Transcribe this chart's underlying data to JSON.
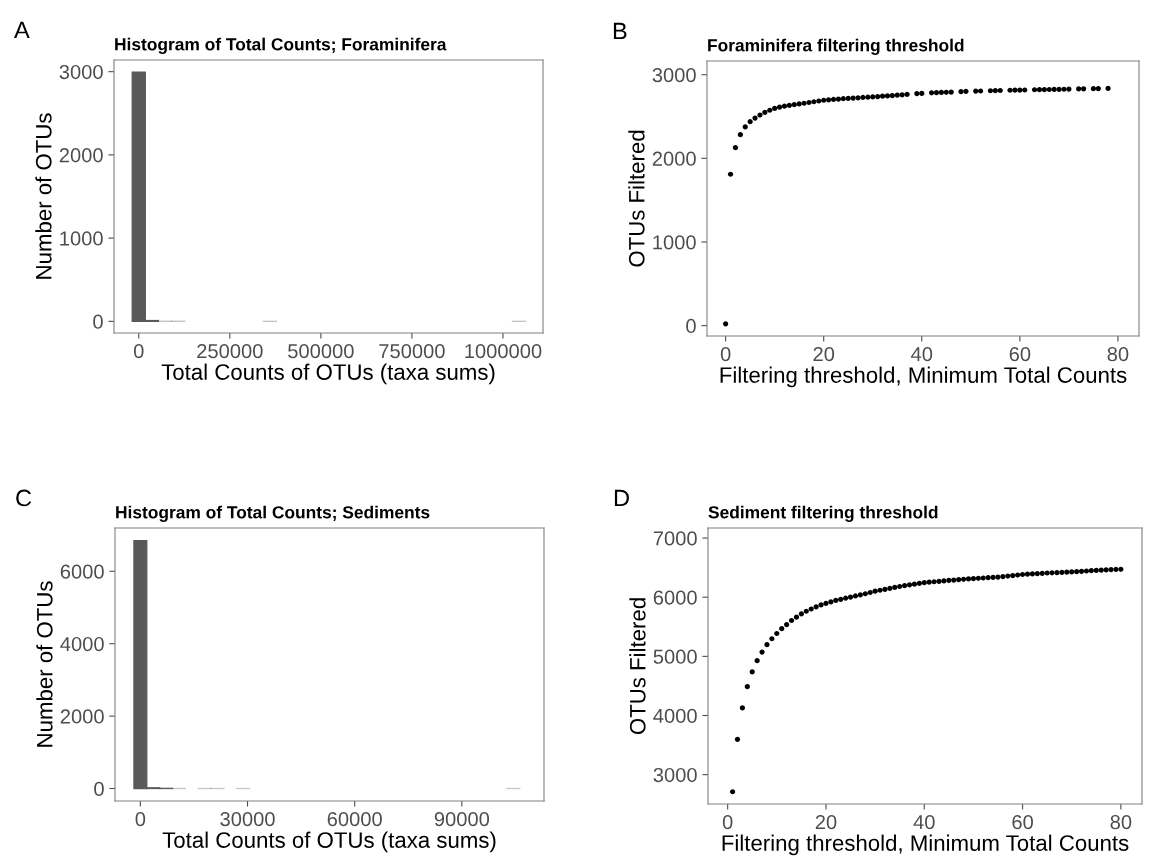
{
  "chart_data": [
    {
      "type": "histogram",
      "title": "Histogram of Total Counts; Foraminifera",
      "xlabel": "Total Counts of OTUs (taxa sums)",
      "ylabel": "Number of OTUs",
      "annotations": [
        "A"
      ],
      "color": "#595959",
      "bins": [
        -18000,
        18000,
        54000,
        90000,
        126000,
        162000,
        198000,
        234000,
        270000,
        306000,
        342000,
        378000,
        414000,
        450000,
        486000,
        522000,
        558000,
        594000,
        630000,
        666000,
        702000,
        738000,
        774000,
        810000,
        846000,
        882000,
        918000,
        954000,
        990000,
        1026000,
        1062000
      ],
      "values": [
        2995,
        10,
        2,
        2,
        0,
        0,
        0,
        0,
        0,
        0,
        1,
        0,
        0,
        0,
        0,
        0,
        0,
        0,
        0,
        0,
        0,
        0,
        0,
        0,
        0,
        0,
        0,
        0,
        0,
        1
      ],
      "xlim": [
        -68000,
        1110000
      ],
      "xticks": [
        0,
        250000,
        500000,
        750000,
        1000000
      ],
      "ylim": [
        -140,
        3140
      ],
      "yticks": [
        0,
        1000,
        2000,
        3000
      ]
    },
    {
      "type": "scatter",
      "title": "Foraminifera filtering threshold",
      "xlabel": "Filtering threshold, Minimum Total Counts",
      "ylabel": "OTUs Filtered",
      "annotations": [
        "B"
      ],
      "color": "#000000",
      "marker": "circle",
      "x": [
        0,
        1,
        2,
        3,
        4,
        5,
        6,
        7,
        8,
        9,
        10,
        11,
        12,
        13,
        14,
        15,
        16,
        17,
        18,
        19,
        20,
        21,
        22,
        23,
        24,
        25,
        26,
        27,
        28,
        29,
        30,
        31,
        32,
        33,
        34,
        35,
        36,
        37,
        39,
        40,
        42,
        43,
        44,
        45,
        46,
        48,
        49,
        51,
        52,
        54,
        55,
        56,
        58,
        59,
        60,
        61,
        63,
        64,
        65,
        66,
        67,
        68,
        69,
        70,
        72,
        73,
        75,
        76,
        78
      ],
      "values": [
        22,
        1810,
        2128,
        2283,
        2376,
        2438,
        2482,
        2518,
        2549,
        2575,
        2597,
        2612,
        2624,
        2634,
        2642,
        2651,
        2659,
        2668,
        2677,
        2686,
        2695,
        2700,
        2704,
        2709,
        2713,
        2717,
        2721,
        2724,
        2728,
        2731,
        2735,
        2739,
        2743,
        2747,
        2751,
        2755,
        2759,
        2765,
        2774,
        2776,
        2784,
        2786,
        2788,
        2790,
        2792,
        2798,
        2800,
        2804,
        2805,
        2808,
        2810,
        2811,
        2814,
        2815,
        2816,
        2817,
        2820,
        2821,
        2822,
        2823,
        2824,
        2825,
        2826,
        2827,
        2830,
        2831,
        2833,
        2834,
        2836
      ],
      "xlim": [
        -3.8,
        84.3
      ],
      "xticks": [
        0,
        20,
        40,
        60,
        80
      ],
      "ylim": [
        -124,
        3164
      ],
      "yticks": [
        0,
        1000,
        2000,
        3000
      ]
    },
    {
      "type": "histogram",
      "title": "Histogram of Total Counts; Sediments",
      "xlabel": "Total Counts of OTUs (taxa sums)",
      "ylabel": "Number of OTUs",
      "annotations": [
        "C"
      ],
      "color": "#595959",
      "bins": [
        -1800,
        1800,
        5400,
        9000,
        12600,
        16200,
        19800,
        23400,
        27000,
        30600,
        34200,
        37800,
        41400,
        45000,
        48600,
        52200,
        55800,
        59400,
        63000,
        66600,
        70200,
        73800,
        77400,
        81000,
        84600,
        88200,
        91800,
        95400,
        99000,
        102600,
        106200
      ],
      "values": [
        6850,
        20,
        5,
        2,
        0,
        1,
        1,
        0,
        1,
        0,
        0,
        0,
        0,
        0,
        0,
        0,
        0,
        0,
        0,
        0,
        0,
        0,
        0,
        0,
        0,
        0,
        0,
        0,
        0,
        1
      ],
      "xlim": [
        -7100,
        113000
      ],
      "xticks": [
        0,
        30000,
        60000,
        90000
      ],
      "ylim": [
        -345,
        7196
      ],
      "yticks": [
        0,
        2000,
        4000,
        6000
      ]
    },
    {
      "type": "scatter",
      "title": "Sediment filtering threshold",
      "xlabel": "Filtering threshold, Minimum Total Counts",
      "ylabel": "OTUs Filtered",
      "annotations": [
        "D"
      ],
      "color": "#000000",
      "marker": "circle",
      "x": [
        1,
        2,
        3,
        4,
        5,
        6,
        7,
        8,
        9,
        10,
        11,
        12,
        13,
        14,
        15,
        16,
        17,
        18,
        19,
        20,
        21,
        22,
        23,
        24,
        25,
        26,
        27,
        28,
        29,
        30,
        31,
        32,
        33,
        34,
        35,
        36,
        37,
        38,
        39,
        40,
        41,
        42,
        43,
        44,
        45,
        46,
        47,
        48,
        49,
        50,
        51,
        52,
        53,
        54,
        55,
        56,
        57,
        58,
        59,
        60,
        61,
        62,
        63,
        64,
        65,
        66,
        67,
        68,
        69,
        70,
        71,
        72,
        73,
        74,
        75,
        76,
        77,
        78,
        79,
        80
      ],
      "values": [
        2711,
        3597,
        4130,
        4488,
        4739,
        4927,
        5072,
        5198,
        5298,
        5386,
        5468,
        5537,
        5606,
        5662,
        5719,
        5763,
        5801,
        5838,
        5870,
        5895,
        5920,
        5945,
        5964,
        5983,
        6002,
        6021,
        6040,
        6058,
        6080,
        6102,
        6118,
        6133,
        6149,
        6165,
        6181,
        6196,
        6209,
        6221,
        6234,
        6246,
        6254,
        6261,
        6269,
        6276,
        6284,
        6290,
        6296,
        6303,
        6309,
        6315,
        6320,
        6325,
        6330,
        6335,
        6340,
        6349,
        6358,
        6366,
        6375,
        6384,
        6389,
        6394,
        6399,
        6404,
        6409,
        6413,
        6417,
        6420,
        6424,
        6428,
        6433,
        6438,
        6443,
        6448,
        6453,
        6457,
        6461,
        6465,
        6469,
        6472
      ],
      "xlim": [
        -4,
        84.3
      ],
      "xticks": [
        0,
        20,
        40,
        60,
        80
      ],
      "ylim": [
        2504,
        7170
      ],
      "yticks": [
        3000,
        4000,
        5000,
        6000,
        7000
      ]
    }
  ]
}
